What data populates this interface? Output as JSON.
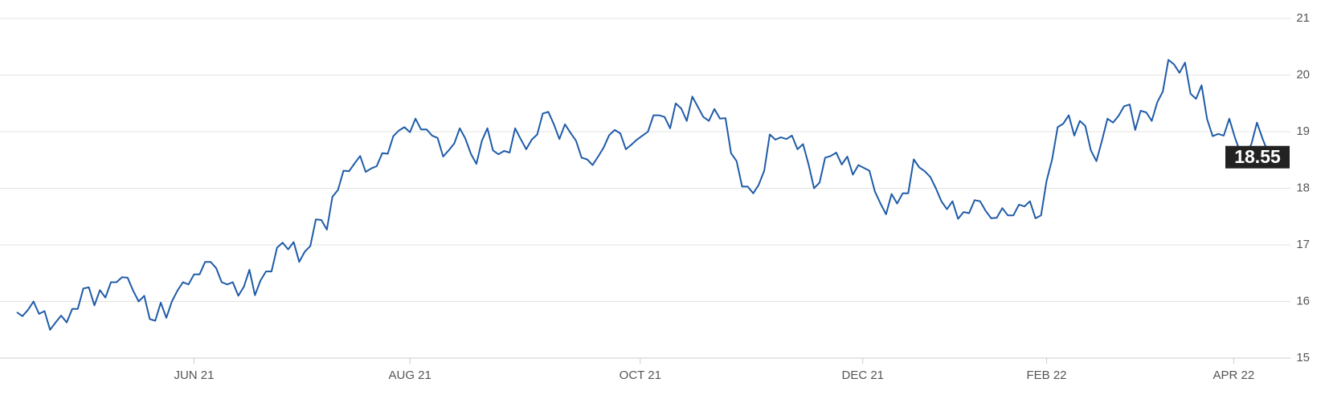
{
  "chart_data": {
    "type": "line",
    "color": "#1f5ba8",
    "values": [
      15.81,
      15.74,
      15.85,
      16.0,
      15.78,
      15.83,
      15.5,
      15.63,
      15.75,
      15.63,
      15.87,
      15.87,
      16.23,
      16.25,
      15.93,
      16.2,
      16.07,
      16.34,
      16.34,
      16.43,
      16.42,
      16.19,
      16.0,
      16.1,
      15.69,
      15.66,
      15.98,
      15.71,
      16.0,
      16.19,
      16.34,
      16.3,
      16.48,
      16.48,
      16.7,
      16.7,
      16.59,
      16.34,
      16.3,
      16.34,
      16.1,
      16.26,
      16.56,
      16.11,
      16.37,
      16.53,
      16.53,
      16.95,
      17.04,
      16.92,
      17.05,
      16.7,
      16.88,
      16.98,
      17.45,
      17.44,
      17.27,
      17.85,
      17.97,
      18.31,
      18.3,
      18.44,
      18.57,
      18.29,
      18.35,
      18.39,
      18.62,
      18.61,
      18.92,
      19.02,
      19.08,
      18.99,
      19.23,
      19.04,
      19.04,
      18.93,
      18.89,
      18.56,
      18.67,
      18.79,
      19.06,
      18.88,
      18.61,
      18.43,
      18.84,
      19.06,
      18.67,
      18.6,
      18.66,
      18.63,
      19.06,
      18.87,
      18.69,
      18.86,
      18.95,
      19.32,
      19.35,
      19.13,
      18.87,
      19.13,
      18.98,
      18.84,
      18.54,
      18.51,
      18.41,
      18.56,
      18.72,
      18.94,
      19.03,
      18.97,
      18.69,
      18.77,
      18.86,
      18.93,
      19.0,
      19.29,
      19.29,
      19.26,
      19.06,
      19.5,
      19.41,
      19.19,
      19.62,
      19.44,
      19.26,
      19.19,
      19.4,
      19.23,
      19.24,
      18.62,
      18.48,
      18.03,
      18.03,
      17.91,
      18.06,
      18.31,
      18.95,
      18.86,
      18.9,
      18.87,
      18.93,
      18.69,
      18.78,
      18.42,
      18.0,
      18.1,
      18.54,
      18.57,
      18.63,
      18.42,
      18.56,
      18.24,
      18.41,
      18.36,
      18.31,
      17.94,
      17.73,
      17.54,
      17.9,
      17.73,
      17.91,
      17.91,
      18.51,
      18.37,
      18.3,
      18.2,
      18.0,
      17.77,
      17.63,
      17.77,
      17.46,
      17.58,
      17.56,
      17.79,
      17.77,
      17.6,
      17.47,
      17.48,
      17.65,
      17.52,
      17.52,
      17.71,
      17.68,
      17.77,
      17.47,
      17.52,
      18.13,
      18.51,
      19.08,
      19.14,
      19.29,
      18.93,
      19.19,
      19.1,
      18.67,
      18.48,
      18.84,
      19.23,
      19.16,
      19.28,
      19.45,
      19.48,
      19.03,
      19.37,
      19.34,
      19.19,
      19.52,
      19.71,
      20.27,
      20.19,
      20.04,
      20.22,
      19.67,
      19.58,
      19.82,
      19.22,
      18.92,
      18.96,
      18.93,
      19.23,
      18.9,
      18.63,
      18.61,
      18.78,
      19.16,
      18.88,
      18.63,
      18.55
    ],
    "xlim": [
      0,
      227
    ],
    "xticks": [
      {
        "value": 32,
        "label": "JUN 21"
      },
      {
        "value": 71,
        "label": "AUG 21"
      },
      {
        "value": 112.6,
        "label": "OCT 21"
      },
      {
        "value": 152.8,
        "label": "DEC 21"
      },
      {
        "value": 186,
        "label": "FEB 22"
      },
      {
        "value": 219.8,
        "label": "APR 22"
      }
    ],
    "ylim": [
      15,
      21
    ],
    "yticks": [
      15,
      16,
      17,
      18,
      19,
      20,
      21
    ],
    "grid": true
  }
}
